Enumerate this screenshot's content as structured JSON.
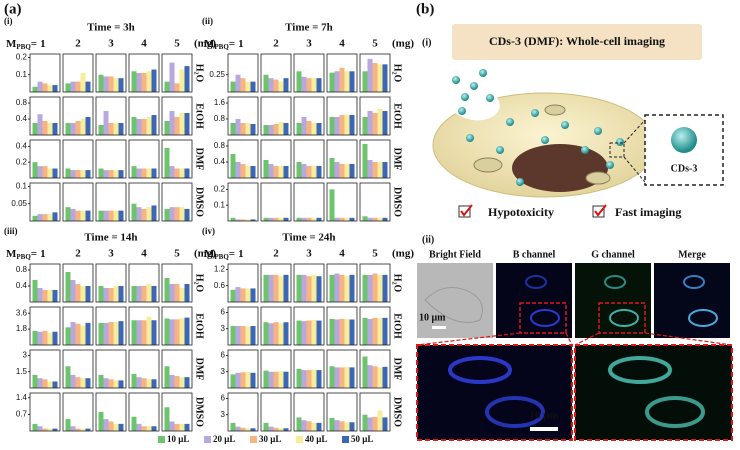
{
  "panel_a": {
    "label": "(a)",
    "series": [
      {
        "name": "10 μL",
        "color": "#6cc46c"
      },
      {
        "name": "20 μL",
        "color": "#b9a7e0"
      },
      {
        "name": "30 μL",
        "color": "#f7b482"
      },
      {
        "name": "40 μL",
        "color": "#f6ee9c"
      },
      {
        "name": "50 μL",
        "color": "#3b67b6"
      }
    ],
    "x_label": {
      "prefix": "M",
      "sub": "PBQ",
      "eq": "="
    },
    "categories": [
      "1",
      "2",
      "3",
      "4",
      "5"
    ],
    "x_unit": "(mg)"
  },
  "chart_data": [
    {
      "type": "bar",
      "label": "(i)",
      "title": "Time = 3h",
      "rows": [
        {
          "name": "H₂O",
          "ylim": [
            0,
            0.22
          ],
          "yticks": [
            0.1,
            0.2
          ],
          "values": [
            [
              0.03,
              0.06,
              0.05,
              0.04,
              0.04
            ],
            [
              0.05,
              0.06,
              0.06,
              0.11,
              0.06
            ],
            [
              0.1,
              0.09,
              0.09,
              0.08,
              0.08
            ],
            [
              0.12,
              0.11,
              0.11,
              0.12,
              0.13
            ],
            [
              0.06,
              0.17,
              0.05,
              0.13,
              0.15
            ]
          ]
        },
        {
          "name": "EtOH",
          "ylim": [
            0,
            0.95
          ],
          "yticks": [
            0.4,
            0.8
          ],
          "values": [
            [
              0.3,
              0.52,
              0.35,
              0.3,
              0.3
            ],
            [
              0.3,
              0.3,
              0.35,
              0.4,
              0.45
            ],
            [
              0.25,
              0.6,
              0.3,
              0.3,
              0.3
            ],
            [
              0.45,
              0.4,
              0.4,
              0.45,
              0.5
            ],
            [
              0.35,
              0.6,
              0.45,
              0.55,
              0.55
            ]
          ]
        },
        {
          "name": "DMF",
          "ylim": [
            0,
            0.48
          ],
          "yticks": [
            0.2,
            0.4
          ],
          "values": [
            [
              0.2,
              0.15,
              0.15,
              0.12,
              0.12
            ],
            [
              0.12,
              0.1,
              0.1,
              0.1,
              0.1
            ],
            [
              0.12,
              0.1,
              0.1,
              0.1,
              0.1
            ],
            [
              0.15,
              0.12,
              0.12,
              0.12,
              0.12
            ],
            [
              0.38,
              0.15,
              0.12,
              0.12,
              0.12
            ]
          ]
        },
        {
          "name": "DMSO",
          "ylim": [
            0,
            0.11
          ],
          "yticks": [
            0.05,
            0.1
          ],
          "values": [
            [
              0.015,
              0.02,
              0.02,
              0.02,
              0.025
            ],
            [
              0.04,
              0.035,
              0.03,
              0.03,
              0.03
            ],
            [
              0.03,
              0.03,
              0.03,
              0.03,
              0.03
            ],
            [
              0.05,
              0.04,
              0.035,
              0.04,
              0.045
            ],
            [
              0.035,
              0.04,
              0.04,
              0.04,
              0.035
            ]
          ]
        }
      ]
    },
    {
      "type": "bar",
      "label": "(ii)",
      "title": "Time = 7h",
      "rows": [
        {
          "name": "H₂O",
          "ylim": [
            0,
            0.55
          ],
          "yticks": [
            0.25
          ],
          "values": [
            [
              0.15,
              0.25,
              0.2,
              0.15,
              0.15
            ],
            [
              0.25,
              0.2,
              0.18,
              0.15,
              0.2
            ],
            [
              0.3,
              0.22,
              0.2,
              0.2,
              0.2
            ],
            [
              0.28,
              0.3,
              0.35,
              0.3,
              0.3
            ],
            [
              0.3,
              0.48,
              0.42,
              0.4,
              0.4
            ]
          ]
        },
        {
          "name": "EtOH",
          "ylim": [
            0,
            1.9
          ],
          "yticks": [
            0.8,
            1.6
          ],
          "values": [
            [
              0.6,
              0.8,
              0.6,
              0.6,
              0.55
            ],
            [
              0.5,
              0.5,
              0.55,
              0.65,
              0.6
            ],
            [
              0.6,
              0.9,
              0.7,
              0.6,
              0.6
            ],
            [
              0.9,
              0.9,
              1.0,
              1.0,
              1.0
            ],
            [
              0.9,
              1.2,
              1.1,
              1.3,
              1.2
            ]
          ]
        },
        {
          "name": "DMF",
          "ylim": [
            0,
            0.95
          ],
          "yticks": [
            0.4,
            0.8
          ],
          "values": [
            [
              0.6,
              0.4,
              0.35,
              0.3,
              0.3
            ],
            [
              0.45,
              0.35,
              0.3,
              0.3,
              0.3
            ],
            [
              0.4,
              0.35,
              0.3,
              0.3,
              0.3
            ],
            [
              0.5,
              0.4,
              0.35,
              0.35,
              0.35
            ],
            [
              0.85,
              0.45,
              0.4,
              0.4,
              0.4
            ]
          ]
        },
        {
          "name": "DMSO",
          "ylim": [
            0,
            0.24
          ],
          "yticks": [
            0.1,
            0.2
          ],
          "values": [
            [
              0.02,
              0.01,
              0.01,
              0.01,
              0.01
            ],
            [
              0.02,
              0.02,
              0.02,
              0.02,
              0.02
            ],
            [
              0.02,
              0.02,
              0.02,
              0.02,
              0.02
            ],
            [
              0.2,
              0.02,
              0.02,
              0.02,
              0.02
            ],
            [
              0.03,
              0.02,
              0.02,
              0.02,
              0.02
            ]
          ]
        }
      ]
    },
    {
      "type": "bar",
      "label": "(iii)",
      "title": "Time = 14h",
      "rows": [
        {
          "name": "H₂O",
          "ylim": [
            0,
            0.95
          ],
          "yticks": [
            0.4,
            0.8
          ],
          "values": [
            [
              0.55,
              0.35,
              0.3,
              0.3,
              0.3
            ],
            [
              0.75,
              0.55,
              0.45,
              0.4,
              0.4
            ],
            [
              0.4,
              0.35,
              0.35,
              0.4,
              0.4
            ],
            [
              0.4,
              0.4,
              0.4,
              0.45,
              0.4
            ],
            [
              0.6,
              0.45,
              0.45,
              0.35,
              0.45
            ]
          ]
        },
        {
          "name": "EtOH",
          "ylim": [
            0,
            4.3
          ],
          "yticks": [
            1.8,
            3.6
          ],
          "values": [
            [
              1.6,
              1.5,
              1.6,
              1.4,
              1.5
            ],
            [
              2.0,
              2.6,
              2.4,
              2.2,
              2.5
            ],
            [
              2.5,
              2.5,
              2.6,
              2.6,
              2.7
            ],
            [
              2.8,
              2.8,
              2.8,
              3.2,
              2.8
            ],
            [
              3.0,
              2.9,
              2.9,
              3.0,
              3.1
            ]
          ]
        },
        {
          "name": "DMF",
          "ylim": [
            0,
            3.5
          ],
          "yticks": [
            1.5,
            3
          ],
          "values": [
            [
              1.2,
              0.9,
              0.8,
              0.6,
              0.6
            ],
            [
              2.0,
              1.2,
              1.0,
              0.9,
              0.9
            ],
            [
              1.2,
              0.9,
              0.8,
              0.7,
              0.7
            ],
            [
              1.3,
              1.0,
              0.9,
              0.8,
              0.8
            ],
            [
              2.0,
              1.2,
              1.1,
              1.0,
              1.0
            ]
          ]
        },
        {
          "name": "DMSO",
          "ylim": [
            0,
            1.6
          ],
          "yticks": [
            0.7,
            1.4
          ],
          "values": [
            [
              0.3,
              0.2,
              0.1,
              0.1,
              0.1
            ],
            [
              0.5,
              0.2,
              0.1,
              0.1,
              0.1
            ],
            [
              0.8,
              0.5,
              0.4,
              0.3,
              0.3
            ],
            [
              0.6,
              0.3,
              0.2,
              0.2,
              0.2
            ],
            [
              1.0,
              0.4,
              0.3,
              0.3,
              0.3
            ]
          ]
        }
      ]
    },
    {
      "type": "bar",
      "label": "(iv)",
      "title": "Time = 24h",
      "rows": [
        {
          "name": "H₂O",
          "ylim": [
            0,
            1.4
          ],
          "yticks": [
            0.6,
            1.2
          ],
          "values": [
            [
              0.45,
              0.55,
              0.5,
              0.5,
              0.5
            ],
            [
              1.0,
              1.0,
              1.0,
              0.95,
              1.0
            ],
            [
              1.0,
              1.0,
              0.95,
              1.0,
              0.95
            ],
            [
              1.0,
              1.05,
              1.0,
              0.95,
              1.0
            ],
            [
              1.0,
              1.0,
              1.05,
              1.0,
              1.0
            ]
          ]
        },
        {
          "name": "EtOH",
          "ylim": [
            0,
            7
          ],
          "yticks": [
            3,
            6
          ],
          "values": [
            [
              3.5,
              3.5,
              3.5,
              3.4,
              3.5
            ],
            [
              4.2,
              4.0,
              4.2,
              4.0,
              4.2
            ],
            [
              4.5,
              4.4,
              4.5,
              4.6,
              4.5
            ],
            [
              4.8,
              4.7,
              4.8,
              4.8,
              4.7
            ],
            [
              5.0,
              4.8,
              5.0,
              5.0,
              5.0
            ]
          ]
        },
        {
          "name": "DMF",
          "ylim": [
            0,
            7
          ],
          "yticks": [
            3,
            6
          ],
          "values": [
            [
              2.5,
              2.8,
              2.9,
              3.0,
              2.8
            ],
            [
              3.2,
              3.0,
              3.0,
              3.1,
              3.0
            ],
            [
              3.5,
              3.3,
              3.3,
              3.4,
              3.3
            ],
            [
              4.0,
              3.8,
              3.8,
              3.9,
              3.8
            ],
            [
              5.8,
              4.2,
              4.0,
              3.8,
              3.9
            ]
          ]
        },
        {
          "name": "DMSO",
          "ylim": [
            0,
            7
          ],
          "yticks": [
            3,
            6
          ],
          "values": [
            [
              1.5,
              0.8,
              0.6,
              0.5,
              0.5
            ],
            [
              1.5,
              0.8,
              0.6,
              0.5,
              0.5
            ],
            [
              2.5,
              2.0,
              1.8,
              1.5,
              1.5
            ],
            [
              2.4,
              2.0,
              1.8,
              1.6,
              1.6
            ],
            [
              3.0,
              2.5,
              2.6,
              3.8,
              2.5
            ]
          ]
        }
      ]
    }
  ],
  "panel_b": {
    "label": "(b)",
    "part_i": "(i)",
    "title": "CDs-3 (DMF): Whole-cell imaging",
    "inset": "CDs-3",
    "features": [
      "Hypotoxicity",
      "Fast imaging"
    ],
    "part_ii": "(ii)",
    "columns": [
      "Bright Field",
      "B channel",
      "G channel",
      "Merge"
    ],
    "scale_bar": "10 μm",
    "zoom_scale_bar": "10 μm"
  }
}
